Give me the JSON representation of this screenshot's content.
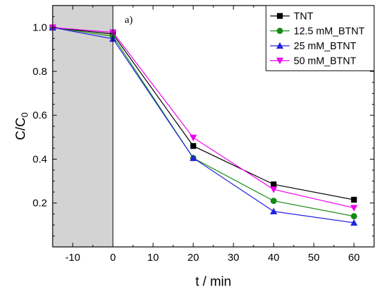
{
  "chart_data": {
    "type": "line",
    "panel_label": "a)",
    "xlabel": "t / min",
    "ylabel_main": "C/C",
    "ylabel_sub": "0",
    "xlim": [
      -15,
      65
    ],
    "ylim": [
      0,
      1.1
    ],
    "xticks": [
      -10,
      0,
      10,
      20,
      30,
      40,
      50,
      60
    ],
    "yticks": [
      0.2,
      0.4,
      0.6,
      0.8,
      1.0
    ],
    "ytick_labels": [
      "0.2",
      "0.4",
      "0.6",
      "0.8",
      "1.0"
    ],
    "shaded_region": {
      "x": [
        -15,
        0
      ],
      "color": "#d3d3d3"
    },
    "x": [
      -15,
      0,
      20,
      40,
      60
    ],
    "series": [
      {
        "name": "TNT",
        "color": "#000000",
        "marker": "square",
        "values": [
          1.0,
          0.97,
          0.46,
          0.285,
          0.215
        ]
      },
      {
        "name": "12.5 mM_BTNT",
        "color": "#138a13",
        "marker": "circle",
        "values": [
          1.0,
          0.96,
          0.405,
          0.21,
          0.14
        ]
      },
      {
        "name": "25 mM_BTNT",
        "color": "#2222dd",
        "marker": "triangle-up",
        "values": [
          1.0,
          0.948,
          0.405,
          0.162,
          0.11
        ]
      },
      {
        "name": "50 mM_BTNT",
        "color": "#ee00ee",
        "marker": "triangle-down",
        "values": [
          1.0,
          0.978,
          0.498,
          0.262,
          0.178
        ]
      }
    ],
    "legend_position": "top-right",
    "grid": false
  }
}
